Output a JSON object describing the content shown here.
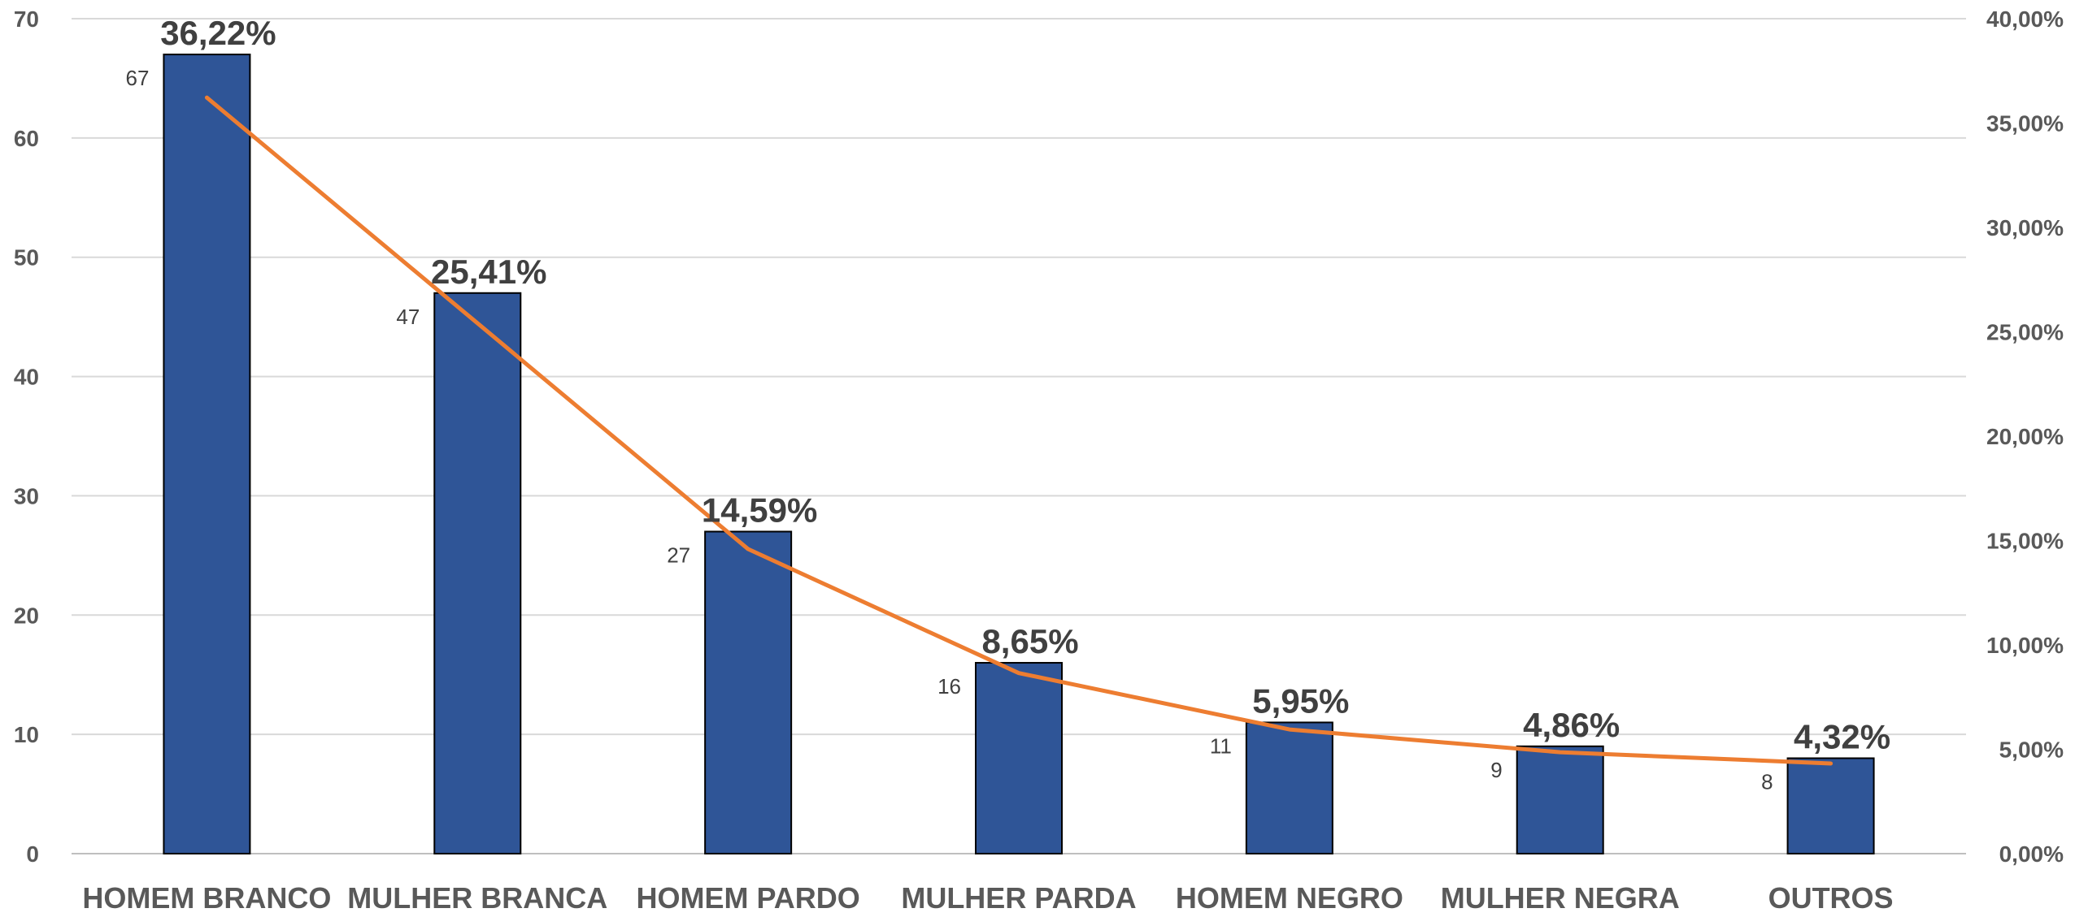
{
  "chart_data": {
    "type": "bar",
    "categories": [
      "HOMEM BRANCO",
      "MULHER BRANCA",
      "HOMEM PARDO",
      "MULHER PARDA",
      "HOMEM NEGRO",
      "MULHER NEGRA",
      "OUTROS"
    ],
    "series": [
      {
        "type": "bar",
        "axis": "left",
        "color": "#2F5597",
        "values": [
          67,
          47,
          27,
          16,
          11,
          9,
          8
        ],
        "data_labels": [
          "67",
          "47",
          "27",
          "16",
          "11",
          "9",
          "8"
        ]
      },
      {
        "type": "line",
        "axis": "right",
        "color": "#ED7D31",
        "values": [
          36.22,
          25.41,
          14.59,
          8.65,
          5.95,
          4.86,
          4.32
        ],
        "data_labels": [
          "36,22%",
          "25,41%",
          "14,59%",
          "8,65%",
          "5,95%",
          "4,86%",
          "4,32%"
        ]
      }
    ],
    "y_left": {
      "ylim": [
        0,
        70
      ],
      "ticks": [
        0,
        10,
        20,
        30,
        40,
        50,
        60,
        70
      ],
      "tick_labels": [
        "0",
        "10",
        "20",
        "30",
        "40",
        "50",
        "60",
        "70"
      ]
    },
    "y_right": {
      "ylim": [
        0,
        40
      ],
      "ticks": [
        0,
        5,
        10,
        15,
        20,
        25,
        30,
        35,
        40
      ],
      "tick_labels": [
        "0,00%",
        "5,00%",
        "10,00%",
        "15,00%",
        "20,00%",
        "25,00%",
        "30,00%",
        "35,00%",
        "40,00%"
      ]
    },
    "grid": true,
    "legend": "none"
  }
}
